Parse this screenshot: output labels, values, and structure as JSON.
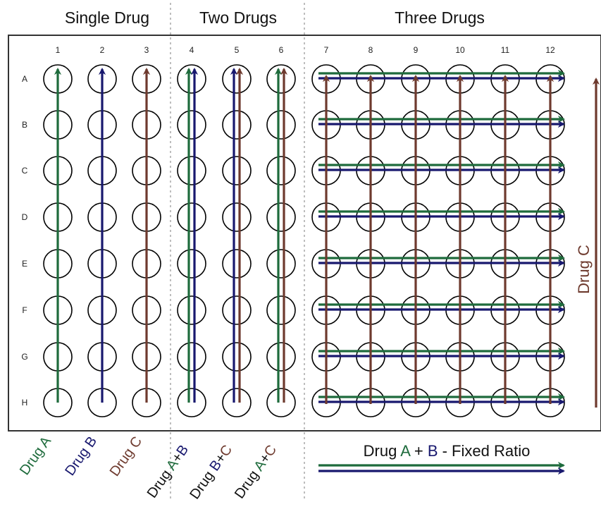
{
  "colors": {
    "drug_a": "#1e6b3c",
    "drug_b": "#18186e",
    "drug_c": "#6e3a2e",
    "well_stroke": "#000000",
    "plate_border": "#333333",
    "divider": "#9a9a9a"
  },
  "sections": [
    {
      "title": "Single Drug"
    },
    {
      "title": "Two Drugs"
    },
    {
      "title": "Three Drugs"
    }
  ],
  "columns": [
    "1",
    "2",
    "3",
    "4",
    "5",
    "6",
    "7",
    "8",
    "9",
    "10",
    "11",
    "12"
  ],
  "rows": [
    "A",
    "B",
    "C",
    "D",
    "E",
    "F",
    "G",
    "H"
  ],
  "bottom_labels": [
    {
      "prefix": "Drug ",
      "parts": [
        {
          "text": "A",
          "drug": "a"
        }
      ],
      "color": "drug_a"
    },
    {
      "prefix": "Drug ",
      "parts": [
        {
          "text": "B",
          "drug": "b"
        }
      ],
      "color": "drug_b"
    },
    {
      "prefix": "Drug ",
      "parts": [
        {
          "text": "C",
          "drug": "c"
        }
      ],
      "color": "drug_c"
    },
    {
      "prefix": "Drug ",
      "parts": [
        {
          "text": "A",
          "drug": "a"
        },
        {
          "text": "+",
          "drug": "none"
        },
        {
          "text": "B",
          "drug": "b"
        }
      ],
      "color": "black"
    },
    {
      "prefix": "Drug ",
      "parts": [
        {
          "text": "B",
          "drug": "b"
        },
        {
          "text": "+",
          "drug": "none"
        },
        {
          "text": "C",
          "drug": "c"
        }
      ],
      "color": "black"
    },
    {
      "prefix": "Drug ",
      "parts": [
        {
          "text": "A",
          "drug": "a"
        },
        {
          "text": "+",
          "drug": "none"
        },
        {
          "text": "C",
          "drug": "c"
        }
      ],
      "color": "black"
    }
  ],
  "side_label": "Drug C",
  "legend": {
    "prefix": "Drug ",
    "drug_a": "A",
    "plus": " + ",
    "drug_b": "B",
    "suffix": " - Fixed Ratio"
  }
}
